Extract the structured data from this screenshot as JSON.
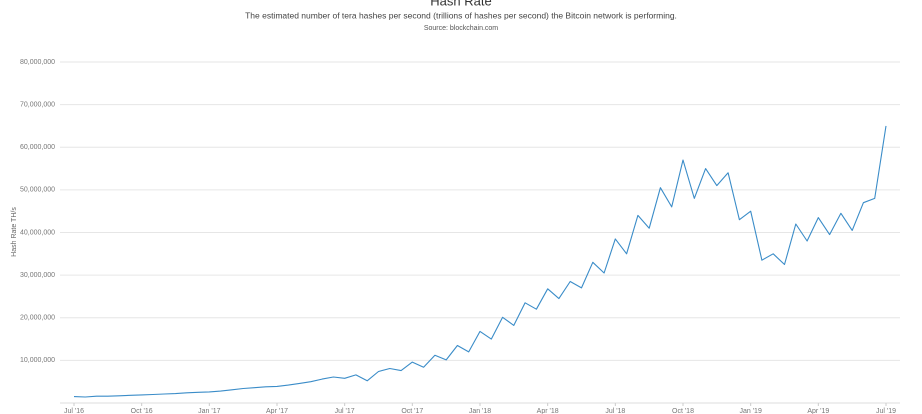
{
  "chart_data": {
    "type": "line",
    "title": "Hash Rate",
    "subtitle": "The estimated number of tera hashes per second (trillions of hashes per second) the Bitcoin network is performing.",
    "source": "Source: blockchain.com",
    "y_label": "Hash Rate TH/s",
    "x": [
      0,
      0.5,
      1,
      1.5,
      2,
      2.5,
      3,
      3.5,
      4,
      4.5,
      5,
      5.5,
      6,
      6.5,
      7,
      7.5,
      8,
      8.5,
      9,
      9.5,
      10,
      10.5,
      11,
      11.5,
      12,
      12.5,
      13,
      13.5,
      14,
      14.5,
      15,
      15.5,
      16,
      16.5,
      17,
      17.5,
      18,
      18.5,
      19,
      19.5,
      20,
      20.5,
      21,
      21.5,
      22,
      22.5,
      23,
      23.5,
      24,
      24.5,
      25,
      25.5,
      26,
      26.5,
      27,
      27.5,
      28,
      28.5,
      29,
      29.5,
      30,
      30.5,
      31,
      31.5,
      32,
      32.5,
      33,
      33.5,
      34,
      34.5,
      35,
      35.5,
      36
    ],
    "series": [
      {
        "name": "Hash Rate",
        "color": "#3a8cc8",
        "values": [
          1500000,
          1400000,
          1600000,
          1600000,
          1700000,
          1800000,
          1900000,
          2000000,
          2100000,
          2200000,
          2400000,
          2500000,
          2600000,
          2800000,
          3100000,
          3400000,
          3600000,
          3800000,
          3900000,
          4200000,
          4600000,
          5000000,
          5600000,
          6100000,
          5800000,
          6600000,
          5200000,
          7400000,
          8100000,
          7600000,
          9600000,
          8400000,
          11200000,
          10100000,
          13500000,
          12000000,
          16800000,
          15000000,
          20100000,
          18200000,
          23500000,
          22000000,
          26800000,
          24500000,
          28500000,
          27000000,
          33000000,
          30500000,
          38500000,
          35000000,
          44000000,
          41000000,
          50500000,
          46000000,
          57000000,
          48000000,
          55000000,
          51000000,
          54000000,
          43000000,
          45000000,
          33500000,
          35000000,
          32500000,
          42000000,
          38000000,
          43500000,
          39500000,
          44500000,
          40500000,
          47000000,
          48000000,
          65000000
        ]
      }
    ],
    "xlim": [
      0,
      36
    ],
    "xticks": [
      {
        "value": 0,
        "label": "Jul '16"
      },
      {
        "value": 3,
        "label": "Oct '16"
      },
      {
        "value": 6,
        "label": "Jan '17"
      },
      {
        "value": 9,
        "label": "Apr '17"
      },
      {
        "value": 12,
        "label": "Jul '17"
      },
      {
        "value": 15,
        "label": "Oct '17"
      },
      {
        "value": 18,
        "label": "Jan '18"
      },
      {
        "value": 21,
        "label": "Apr '18"
      },
      {
        "value": 24,
        "label": "Jul '18"
      },
      {
        "value": 27,
        "label": "Oct '18"
      },
      {
        "value": 30,
        "label": "Jan '19"
      },
      {
        "value": 33,
        "label": "Apr '19"
      },
      {
        "value": 36,
        "label": "Jul '19"
      }
    ],
    "ylim": [
      0,
      80000000
    ],
    "yticks": [
      {
        "value": 10000000,
        "label": "10,000,000"
      },
      {
        "value": 20000000,
        "label": "20,000,000"
      },
      {
        "value": 30000000,
        "label": "30,000,000"
      },
      {
        "value": 40000000,
        "label": "40,000,000"
      },
      {
        "value": 50000000,
        "label": "50,000,000"
      },
      {
        "value": 60000000,
        "label": "60,000,000"
      },
      {
        "value": 70000000,
        "label": "70,000,000"
      },
      {
        "value": 80000000,
        "label": "80,000,000"
      }
    ],
    "grid": true
  }
}
